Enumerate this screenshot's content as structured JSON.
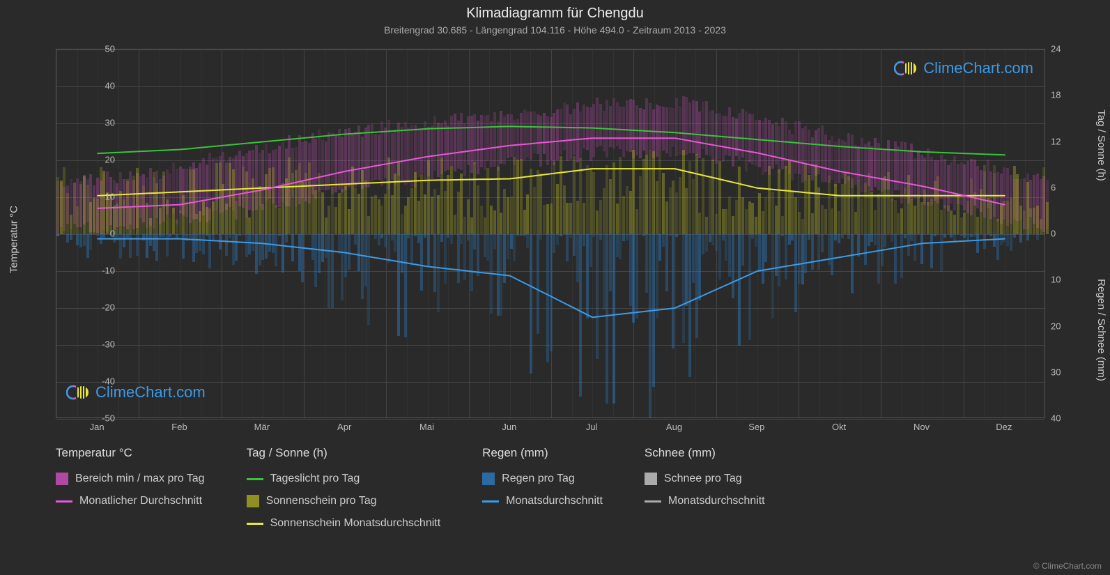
{
  "title": "Klimadiagramm für Chengdu",
  "subtitle": "Breitengrad 30.685 - Längengrad 104.116 - Höhe 494.0 - Zeitraum 2013 - 2023",
  "watermark_text": "ClimeChart.com",
  "copyright": "© ClimeChart.com",
  "chart": {
    "background_color": "#2a2a2a",
    "grid_color": "#444444",
    "axis_color": "#555555",
    "text_color": "#cccccc",
    "months": [
      "Jan",
      "Feb",
      "Mär",
      "Apr",
      "Mai",
      "Jun",
      "Jul",
      "Aug",
      "Sep",
      "Okt",
      "Nov",
      "Dez"
    ],
    "y_left": {
      "min": -50,
      "max": 50,
      "step": 10,
      "title": "Temperatur °C"
    },
    "y_right_top": {
      "min": 0,
      "max": 24,
      "step": 6,
      "title": "Tag / Sonne (h)"
    },
    "y_right_bottom": {
      "min": 0,
      "max": 40,
      "step": 10,
      "title": "Regen / Schnee (mm)"
    },
    "series": {
      "temp_avg": {
        "color": "#e857d8",
        "width": 2,
        "values": [
          7,
          8,
          12,
          17,
          21,
          24,
          26,
          26,
          22,
          17,
          13,
          8
        ]
      },
      "temp_range_max": {
        "color": "#e857d8",
        "opacity": 0.35,
        "values": [
          14,
          16,
          22,
          27,
          30,
          32,
          35,
          36,
          30,
          25,
          20,
          15
        ]
      },
      "temp_range_min": {
        "color": "#e857d8",
        "opacity": 0.35,
        "values": [
          1,
          3,
          6,
          11,
          15,
          19,
          22,
          22,
          17,
          12,
          7,
          2
        ]
      },
      "daylight": {
        "color": "#3dc23d",
        "width": 2,
        "values": [
          10.5,
          11,
          12,
          13,
          13.7,
          14,
          13.8,
          13.2,
          12.3,
          11.4,
          10.7,
          10.3
        ]
      },
      "sunshine_avg": {
        "color": "#e8e838",
        "width": 2,
        "values": [
          5,
          5.5,
          6,
          6.5,
          7,
          7.2,
          8.5,
          8.5,
          6,
          5,
          5,
          5
        ]
      },
      "sunshine_daily_max": {
        "color": "#bcbc20",
        "opacity": 0.4,
        "values": [
          9,
          9,
          10,
          10,
          10,
          10,
          11,
          11,
          10,
          9,
          9,
          9
        ]
      },
      "rain_avg": {
        "color": "#3b9be8",
        "width": 2,
        "values": [
          1,
          1,
          2,
          4,
          7,
          9,
          18,
          16,
          8,
          5,
          2,
          1
        ]
      },
      "rain_daily_max": {
        "color": "#2d7bc0",
        "opacity": 0.45,
        "values": [
          5,
          6,
          10,
          18,
          25,
          30,
          40,
          40,
          30,
          15,
          8,
          5
        ]
      }
    }
  },
  "legend": {
    "columns": [
      {
        "header": "Temperatur °C",
        "items": [
          {
            "type": "swatch",
            "color": "#e857d8",
            "opacity": 0.7,
            "label": "Bereich min / max pro Tag"
          },
          {
            "type": "line",
            "color": "#e857d8",
            "label": "Monatlicher Durchschnitt"
          }
        ]
      },
      {
        "header": "Tag / Sonne (h)",
        "items": [
          {
            "type": "line",
            "color": "#3dc23d",
            "label": "Tageslicht pro Tag"
          },
          {
            "type": "swatch",
            "color": "#bcbc20",
            "opacity": 0.7,
            "label": "Sonnenschein pro Tag"
          },
          {
            "type": "line",
            "color": "#e8e838",
            "label": "Sonnenschein Monatsdurchschnitt"
          }
        ]
      },
      {
        "header": "Regen (mm)",
        "items": [
          {
            "type": "swatch",
            "color": "#2d7bc0",
            "opacity": 0.8,
            "label": "Regen pro Tag"
          },
          {
            "type": "line",
            "color": "#3b9be8",
            "label": "Monatsdurchschnitt"
          }
        ]
      },
      {
        "header": "Schnee (mm)",
        "items": [
          {
            "type": "swatch",
            "color": "#cccccc",
            "opacity": 0.8,
            "label": "Schnee pro Tag"
          },
          {
            "type": "line",
            "color": "#aaaaaa",
            "label": "Monatsdurchschnitt"
          }
        ]
      }
    ]
  }
}
